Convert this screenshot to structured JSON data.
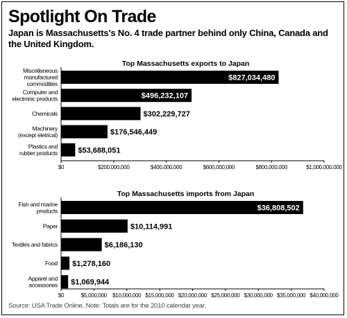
{
  "header": {
    "title": "Spotlight On Trade",
    "subtitle": "Japan is Massachusetts's No. 4 trade partner behind only China, Canada and the United Kingdom."
  },
  "footer": {
    "source": "Source: USA Trade Online. Note: Totals are for the 2010 calendar year."
  },
  "colors": {
    "bar": "#000000",
    "axis": "#000000",
    "inside_label": "#ffffff",
    "outside_label": "#000000"
  },
  "chart_data": [
    {
      "type": "bar",
      "orientation": "horizontal",
      "title": "Top Massachusetts exports to Japan",
      "categories": [
        [
          "Miscellaneous",
          "manufactured",
          "commodities"
        ],
        [
          "Computer and",
          "electronic products"
        ],
        [
          "Chemicals"
        ],
        [
          "Machinery",
          "(except eletrical)"
        ],
        [
          "Plastics and",
          "rubber products"
        ]
      ],
      "values": [
        827034480,
        496232107,
        302229727,
        176546449,
        53688051
      ],
      "value_labels": [
        "$827,034,480",
        "$496,232,107",
        "$302,229,727",
        "$176,546,449",
        "$53,688,051"
      ],
      "xlim": [
        0,
        1000000000
      ],
      "ticks": [
        0,
        200000000,
        400000000,
        600000000,
        800000000,
        1000000000
      ],
      "tick_labels": [
        "$0",
        "$200,000,000",
        "$400,000,000",
        "$600,000,000",
        "$800,000,000",
        "$1,000,000,000"
      ],
      "xlabel": "",
      "ylabel": "",
      "grid": false,
      "legend": "none"
    },
    {
      "type": "bar",
      "orientation": "horizontal",
      "title": "Top Massachusetts imports from Japan",
      "categories": [
        [
          "Fish and marine",
          "products"
        ],
        [
          "Paper"
        ],
        [
          "Textiles and fabrics"
        ],
        [
          "Food"
        ],
        [
          "Apparel and",
          "accessories"
        ]
      ],
      "values": [
        36808502,
        10114991,
        6186130,
        1278160,
        1069944
      ],
      "value_labels": [
        "$36,808,502",
        "$10,114,991",
        "$6,186,130",
        "$1,278,160",
        "$1,069,944"
      ],
      "xlim": [
        0,
        40000000
      ],
      "ticks": [
        0,
        5000000,
        10000000,
        15000000,
        20000000,
        25000000,
        30000000,
        35000000,
        40000000
      ],
      "tick_labels": [
        "$0",
        "$5,000,000",
        "$10,000,000",
        "$15,000,000",
        "$20,000,000",
        "$25,000,000",
        "$30,000,000",
        "$35,000,000",
        "$40,000,000"
      ],
      "xlabel": "",
      "ylabel": "",
      "grid": false,
      "legend": "none"
    }
  ]
}
